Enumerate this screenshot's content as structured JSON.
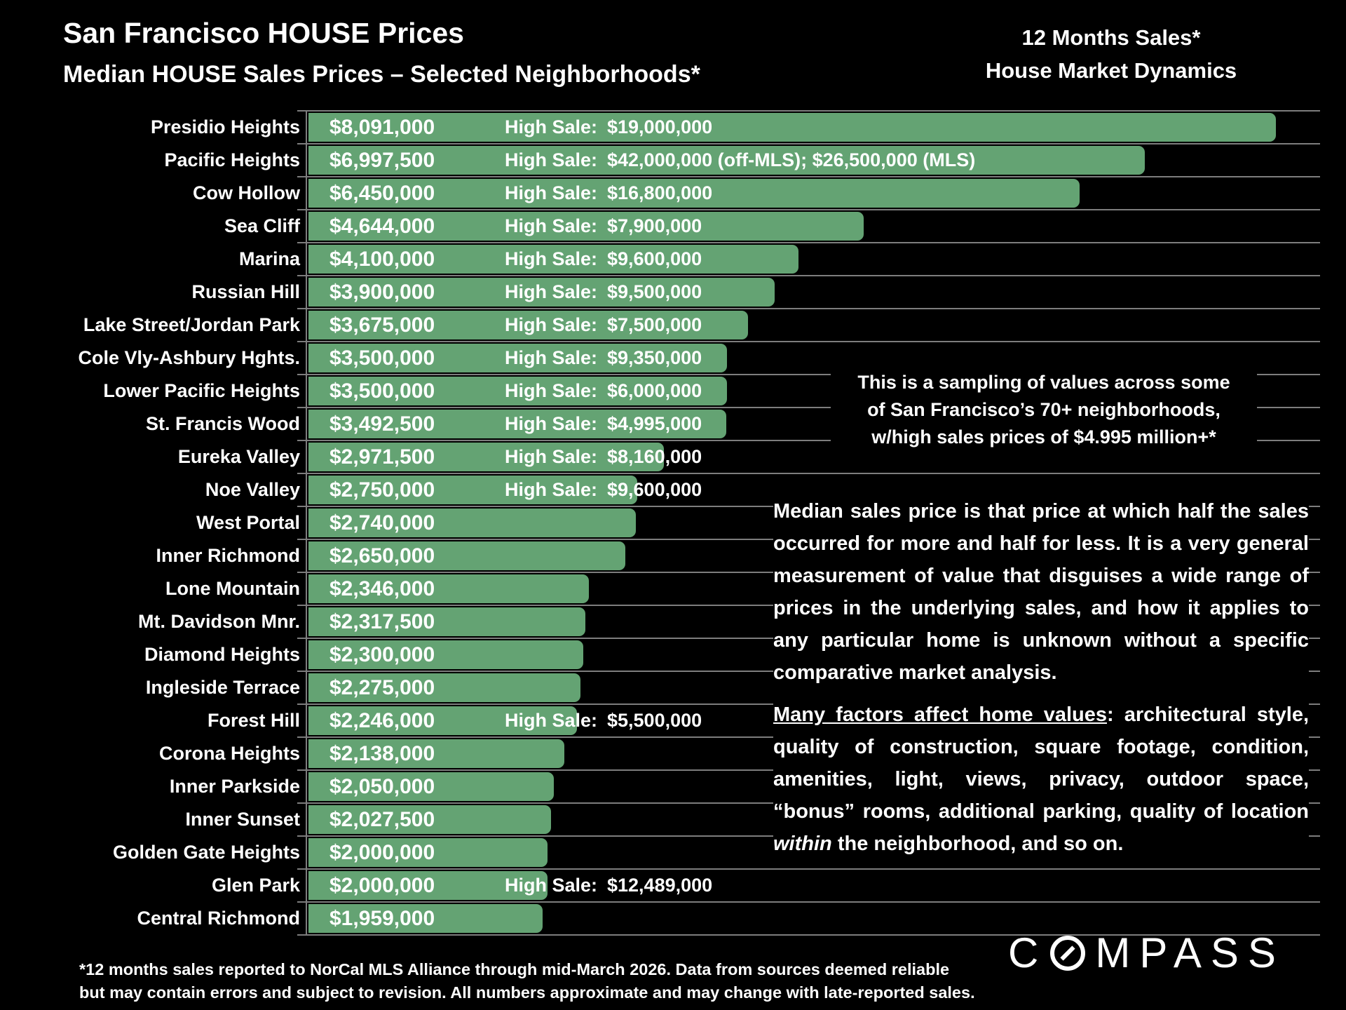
{
  "title": "San Francisco HOUSE Prices",
  "subtitle": "Median HOUSE Sales Prices – Selected Neighborhoods*",
  "top_right": {
    "line1": "12 Months Sales*",
    "line2": "House Market Dynamics"
  },
  "colors": {
    "background": "#000000",
    "bar_green": "#64a373",
    "text": "#ffffff",
    "gridline": "#7d7d7d"
  },
  "chart_data": {
    "type": "bar",
    "orientation": "horizontal",
    "value_axis_max": 8091000,
    "grid": true,
    "high_sale_prefix": "High Sale:",
    "rows": [
      {
        "name": "Presidio Heights",
        "median": 8091000,
        "median_label": "$8,091,000",
        "high_sale": "$19,000,000"
      },
      {
        "name": "Pacific Heights",
        "median": 6997500,
        "median_label": "$6,997,500",
        "high_sale": "$42,000,000 (off-MLS); $26,500,000 (MLS)"
      },
      {
        "name": "Cow Hollow",
        "median": 6450000,
        "median_label": "$6,450,000",
        "high_sale": "$16,800,000"
      },
      {
        "name": "Sea Cliff",
        "median": 4644000,
        "median_label": "$4,644,000",
        "high_sale": "$7,900,000"
      },
      {
        "name": "Marina",
        "median": 4100000,
        "median_label": "$4,100,000",
        "high_sale": "$9,600,000"
      },
      {
        "name": "Russian Hill",
        "median": 3900000,
        "median_label": "$3,900,000",
        "high_sale": "$9,500,000"
      },
      {
        "name": "Lake Street/Jordan Park",
        "median": 3675000,
        "median_label": "$3,675,000",
        "high_sale": "$7,500,000"
      },
      {
        "name": "Cole Vly-Ashbury Hghts.",
        "median": 3500000,
        "median_label": "$3,500,000",
        "high_sale": "$9,350,000"
      },
      {
        "name": "Lower Pacific Heights",
        "median": 3500000,
        "median_label": "$3,500,000",
        "high_sale": "$6,000,000"
      },
      {
        "name": "St. Francis Wood",
        "median": 3492500,
        "median_label": "$3,492,500",
        "high_sale": "$4,995,000"
      },
      {
        "name": "Eureka Valley",
        "median": 2971500,
        "median_label": "$2,971,500",
        "high_sale": "$8,160,000"
      },
      {
        "name": "Noe Valley",
        "median": 2750000,
        "median_label": "$2,750,000",
        "high_sale": "$9,600,000"
      },
      {
        "name": "West Portal",
        "median": 2740000,
        "median_label": "$2,740,000",
        "high_sale": null
      },
      {
        "name": "Inner Richmond",
        "median": 2650000,
        "median_label": "$2,650,000",
        "high_sale": null
      },
      {
        "name": "Lone Mountain",
        "median": 2346000,
        "median_label": "$2,346,000",
        "high_sale": null
      },
      {
        "name": "Mt. Davidson Mnr.",
        "median": 2317500,
        "median_label": "$2,317,500",
        "high_sale": null
      },
      {
        "name": "Diamond Heights",
        "median": 2300000,
        "median_label": "$2,300,000",
        "high_sale": null
      },
      {
        "name": "Ingleside Terrace",
        "median": 2275000,
        "median_label": "$2,275,000",
        "high_sale": null
      },
      {
        "name": "Forest Hill",
        "median": 2246000,
        "median_label": "$2,246,000",
        "high_sale": "$5,500,000"
      },
      {
        "name": "Corona Heights",
        "median": 2138000,
        "median_label": "$2,138,000",
        "high_sale": null
      },
      {
        "name": "Inner Parkside",
        "median": 2050000,
        "median_label": "$2,050,000",
        "high_sale": null
      },
      {
        "name": "Inner Sunset",
        "median": 2027500,
        "median_label": "$2,027,500",
        "high_sale": null
      },
      {
        "name": "Golden Gate Heights",
        "median": 2000000,
        "median_label": "$2,000,000",
        "high_sale": null
      },
      {
        "name": "Glen Park",
        "median": 2000000,
        "median_label": "$2,000,000",
        "high_sale": "$12,489,000"
      },
      {
        "name": "Central Richmond",
        "median": 1959000,
        "median_label": "$1,959,000",
        "high_sale": null
      }
    ]
  },
  "annotations": {
    "sampling": [
      "This is a sampling of values across some",
      "of San Francisco’s 70+ neighborhoods,",
      "w/high sales prices of $4.995 million+*"
    ],
    "median_note": "Median sales price is that price at which half the sales occurred for more and half for less. It is a very general measurement of value that disguises a wide range of prices in the underlying sales, and how it applies to any particular home is unknown without a specific comparative market analysis.",
    "factors": {
      "underlined": "Many factors affect home values",
      "rest1": ": architectural style, quality of construction, square footage, condition, amenities, light, views, privacy, outdoor space, “bonus” rooms, additional parking, quality of location ",
      "italic": "within",
      "rest2": " the neighborhood, and so on."
    }
  },
  "footnote": {
    "line1": "*12 months sales reported to NorCal MLS Alliance through mid-March 2026. Data from sources deemed reliable",
    "line2": "but may contain errors and subject to revision. All numbers approximate and may change with late-reported sales."
  },
  "logo": {
    "name": "COMPASS",
    "before": "C",
    "after": "MPASS"
  }
}
